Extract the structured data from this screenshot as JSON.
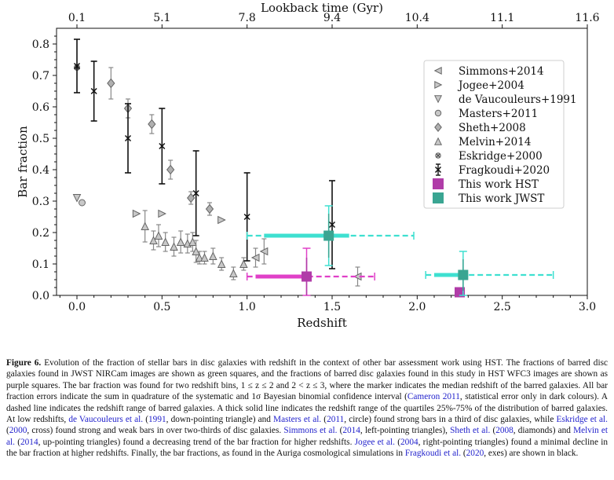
{
  "chart_data": {
    "type": "scatter",
    "xlabel": "Redshift",
    "ylabel": "Bar fraction",
    "top_axis_label": "Lookback time (Gyr)",
    "xlim": [
      -0.12,
      3.0
    ],
    "ylim": [
      0.0,
      0.85
    ],
    "x_ticks": [
      "0.0",
      "0.5",
      "1.0",
      "1.5",
      "2.0",
      "2.5",
      "3.0"
    ],
    "x_tick_values": [
      0.0,
      0.5,
      1.0,
      1.5,
      2.0,
      2.5,
      3.0
    ],
    "y_ticks": [
      "0.0",
      "0.1",
      "0.2",
      "0.3",
      "0.4",
      "0.5",
      "0.6",
      "0.7",
      "0.8"
    ],
    "y_tick_values": [
      0.0,
      0.1,
      0.2,
      0.3,
      0.4,
      0.5,
      0.6,
      0.7,
      0.8
    ],
    "top_ticks": [
      {
        "label": "0.1",
        "z": 0.0
      },
      {
        "label": "5.1",
        "z": 0.5
      },
      {
        "label": "7.8",
        "z": 1.0
      },
      {
        "label": "9.4",
        "z": 1.5
      },
      {
        "label": "10.4",
        "z": 2.0
      },
      {
        "label": "11.1",
        "z": 2.5
      },
      {
        "label": "11.6",
        "z": 3.0
      }
    ],
    "legend_placement": "right",
    "grid": false,
    "series": [
      {
        "name": "Simmons+2014",
        "marker": "triangle-left",
        "color": "#999999",
        "points": [
          [
            1.05,
            0.12,
            0.03
          ],
          [
            1.1,
            0.14,
            0.04
          ],
          [
            1.65,
            0.06,
            0.03
          ]
        ]
      },
      {
        "name": "Jogee+2004",
        "marker": "triangle-right",
        "color": "#999999",
        "points": [
          [
            0.35,
            0.26,
            0
          ],
          [
            0.5,
            0.26,
            0
          ],
          [
            0.85,
            0.24,
            0
          ]
        ]
      },
      {
        "name": "de Vaucouleurs+1991",
        "marker": "triangle-down",
        "color": "#999999",
        "points": [
          [
            0.0,
            0.31,
            0
          ]
        ]
      },
      {
        "name": "Masters+2011",
        "marker": "circle",
        "color": "#999999",
        "points": [
          [
            0.03,
            0.295,
            0
          ]
        ]
      },
      {
        "name": "Sheth+2008",
        "marker": "diamond",
        "color": "#999999",
        "points": [
          [
            0.2,
            0.675,
            0.05
          ],
          [
            0.3,
            0.595,
            0.03
          ],
          [
            0.44,
            0.545,
            0.03
          ],
          [
            0.55,
            0.4,
            0.03
          ],
          [
            0.67,
            0.31,
            0.02
          ],
          [
            0.78,
            0.275,
            0.02
          ]
        ]
      },
      {
        "name": "Melvin+2014",
        "marker": "triangle-up",
        "color": "#999999",
        "points": [
          [
            0.4,
            0.22,
            0.05
          ],
          [
            0.45,
            0.175,
            0.03
          ],
          [
            0.48,
            0.19,
            0.035
          ],
          [
            0.52,
            0.17,
            0.03
          ],
          [
            0.57,
            0.155,
            0.03
          ],
          [
            0.61,
            0.17,
            0.035
          ],
          [
            0.65,
            0.165,
            0.03
          ],
          [
            0.68,
            0.17,
            0.03
          ],
          [
            0.7,
            0.14,
            0.035
          ],
          [
            0.72,
            0.12,
            0.02
          ],
          [
            0.75,
            0.12,
            0.02
          ],
          [
            0.8,
            0.125,
            0.025
          ],
          [
            0.85,
            0.1,
            0.02
          ],
          [
            0.92,
            0.07,
            0.02
          ],
          [
            0.98,
            0.1,
            0.02
          ]
        ]
      },
      {
        "name": "Eskridge+2000",
        "marker": "circle-x",
        "color": "#999999",
        "points": [
          [
            0.0,
            0.725,
            0
          ]
        ]
      },
      {
        "name": "Fragkoudi+2020",
        "marker": "x",
        "color": "#111111",
        "points": [
          [
            0.0,
            0.73,
            0.085
          ],
          [
            0.1,
            0.65,
            0.095
          ],
          [
            0.3,
            0.5,
            0.11
          ],
          [
            0.5,
            0.475,
            0.12
          ],
          [
            0.7,
            0.325,
            0.135
          ],
          [
            1.0,
            0.25,
            0.14
          ],
          [
            1.5,
            0.225,
            0.14
          ]
        ]
      },
      {
        "name": "This work HST",
        "marker": "square",
        "color": "#b03ca8",
        "points": [
          [
            1.35,
            0.06,
            0.06,
            0.09
          ],
          [
            2.25,
            0.01,
            0.01,
            0.0
          ]
        ],
        "light_color": "#e040c8",
        "quartile_ranges": [
          [
            1.05,
            1.38
          ]
        ],
        "z_ranges": [
          [
            1.0,
            1.75
          ]
        ]
      },
      {
        "name": "This work JWST",
        "marker": "square",
        "color": "#3aa592",
        "points": [
          [
            1.48,
            0.19,
            0.07,
            0.095
          ],
          [
            2.27,
            0.065,
            0.05,
            0.075
          ]
        ],
        "light_color": "#3ee0d0",
        "quartile_ranges": [
          [
            1.1,
            1.6
          ],
          [
            2.1,
            2.3
          ]
        ],
        "z_ranges": [
          [
            1.0,
            1.98
          ],
          [
            2.05,
            2.8
          ]
        ]
      }
    ]
  },
  "caption": {
    "label": "Figure 6.",
    "segments": [
      {
        "t": " Evolution of the fraction of stellar bars in disc galaxies with redshift in the context of other bar assessment work using HST. The fractions of barred disc galaxies found in JWST NIRCam images are shown as green squares, and the fractions of barred disc galaxies found in this study in HST WFC3 images are shown as purple squares. The bar fraction was found for two redshift bins, 1 ≤ z ≤ 2 and 2 < z ≤ 3, where the marker indicates the median redshift of the barred galaxies. All bar fraction errors indicate the sum in quadrature of the systematic and 1σ Bayesian binomial confidence interval (",
        "c": false
      },
      {
        "t": "Cameron 2011",
        "c": true
      },
      {
        "t": ", statistical error only in dark colours). A dashed line indicates the redshift range of barred galaxies. A thick solid line indicates the redshift range of the quartiles 25%-75% of the distribution of barred galaxies. At low redshifts, ",
        "c": false
      },
      {
        "t": "de Vaucouleurs et al.",
        "c": true
      },
      {
        "t": " (",
        "c": false
      },
      {
        "t": "1991",
        "c": true
      },
      {
        "t": ", down-pointing triangle) and ",
        "c": false
      },
      {
        "t": "Masters et al.",
        "c": true
      },
      {
        "t": " (",
        "c": false
      },
      {
        "t": "2011",
        "c": true
      },
      {
        "t": ", circle) found strong bars in a third of disc galaxies, while ",
        "c": false
      },
      {
        "t": "Eskridge et al.",
        "c": true
      },
      {
        "t": " (",
        "c": false
      },
      {
        "t": "2000",
        "c": true
      },
      {
        "t": ", cross) found strong and weak bars in over two-thirds of disc galaxies. ",
        "c": false
      },
      {
        "t": "Simmons et al.",
        "c": true
      },
      {
        "t": " (",
        "c": false
      },
      {
        "t": "2014",
        "c": true
      },
      {
        "t": ", left-pointing triangles), ",
        "c": false
      },
      {
        "t": "Sheth et al.",
        "c": true
      },
      {
        "t": " (",
        "c": false
      },
      {
        "t": "2008",
        "c": true
      },
      {
        "t": ", diamonds) and ",
        "c": false
      },
      {
        "t": "Melvin et al.",
        "c": true
      },
      {
        "t": " (",
        "c": false
      },
      {
        "t": "2014",
        "c": true
      },
      {
        "t": ", up-pointing triangles) found a decreasing trend of the bar fraction for higher redshifts. ",
        "c": false
      },
      {
        "t": "Jogee et al.",
        "c": true
      },
      {
        "t": " (",
        "c": false
      },
      {
        "t": "2004",
        "c": true
      },
      {
        "t": ", right-pointing triangles) found a minimal decline in the bar fraction at higher redshifts. Finally, the bar fractions, as found in the Auriga cosmological simulations in ",
        "c": false
      },
      {
        "t": "Fragkoudi et al.",
        "c": true
      },
      {
        "t": " (",
        "c": false
      },
      {
        "t": "2020",
        "c": true
      },
      {
        "t": ", exes) are shown in black.",
        "c": false
      }
    ]
  }
}
